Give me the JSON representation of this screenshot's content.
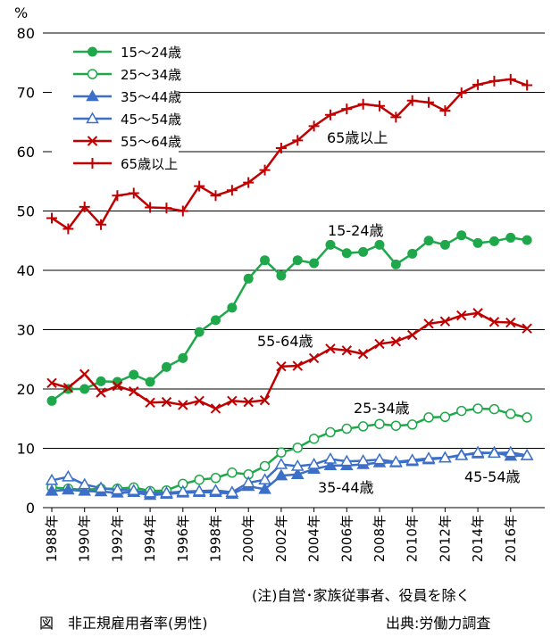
{
  "chart_data": {
    "type": "line",
    "unit_label": "%",
    "ylim": [
      0,
      80
    ],
    "yticks": [
      0,
      10,
      20,
      30,
      40,
      50,
      60,
      70,
      80
    ],
    "grid": true,
    "legend_position": "top-left",
    "x": [
      1988,
      1989,
      1990,
      1991,
      1992,
      1993,
      1994,
      1995,
      1996,
      1997,
      1998,
      1999,
      2000,
      2001,
      2002,
      2003,
      2004,
      2005,
      2006,
      2007,
      2008,
      2009,
      2010,
      2011,
      2012,
      2013,
      2014,
      2015,
      2016,
      2017
    ],
    "xtick_labels": [
      "1988年",
      "1990年",
      "1992年",
      "1994年",
      "1996年",
      "1998年",
      "2000年",
      "2002年",
      "2004年",
      "2006年",
      "2008年",
      "2010年",
      "2012年",
      "2014年",
      "2016年"
    ],
    "series": [
      {
        "name": "15～24歳",
        "color": "#1fa84b",
        "marker": "circle-filled",
        "values": [
          18.0,
          20.0,
          20.0,
          21.3,
          21.2,
          22.4,
          21.2,
          23.7,
          25.2,
          29.6,
          31.6,
          33.7,
          38.6,
          41.7,
          39.1,
          41.7,
          41.2,
          44.3,
          42.9,
          43.1,
          44.3,
          41.0,
          42.8,
          45.0,
          44.3,
          45.9,
          44.6,
          44.9,
          45.5,
          45.1
        ]
      },
      {
        "name": "25～34歳",
        "color": "#1fa84b",
        "marker": "circle-open",
        "values": [
          3.4,
          3.2,
          3.0,
          3.2,
          3.2,
          3.4,
          2.8,
          2.9,
          4.0,
          4.7,
          5.0,
          5.9,
          5.6,
          7.0,
          9.3,
          10.1,
          11.6,
          12.7,
          13.3,
          13.7,
          14.1,
          13.8,
          14.0,
          15.2,
          15.3,
          16.3,
          16.7,
          16.6,
          15.8,
          15.2
        ]
      },
      {
        "name": "35～44歳",
        "color": "#3b6fc8",
        "marker": "triangle-filled",
        "values": [
          2.8,
          3.0,
          2.8,
          2.7,
          2.5,
          2.6,
          2.1,
          2.3,
          2.5,
          2.6,
          2.6,
          2.3,
          3.6,
          3.1,
          5.4,
          5.6,
          6.5,
          7.1,
          7.1,
          7.3,
          7.6,
          7.6,
          7.8,
          8.1,
          8.4,
          8.9,
          9.1,
          9.3,
          8.7,
          8.8
        ]
      },
      {
        "name": "45～54歳",
        "color": "#3b6fc8",
        "marker": "triangle-open",
        "values": [
          4.6,
          5.2,
          3.9,
          3.3,
          3.0,
          2.9,
          2.5,
          2.5,
          2.7,
          2.8,
          2.9,
          2.6,
          4.2,
          4.7,
          7.3,
          7.0,
          7.3,
          8.2,
          7.8,
          7.9,
          8.1,
          7.7,
          8.0,
          8.3,
          8.4,
          8.8,
          9.3,
          9.2,
          9.3,
          8.8
        ]
      },
      {
        "name": "55～64歳",
        "color": "#c00000",
        "marker": "x",
        "values": [
          21.0,
          20.2,
          22.5,
          19.4,
          20.5,
          19.6,
          17.7,
          17.8,
          17.3,
          18.0,
          16.7,
          18.0,
          17.8,
          18.1,
          23.8,
          23.9,
          25.2,
          26.8,
          26.5,
          25.9,
          27.6,
          28.0,
          29.1,
          31.0,
          31.4,
          32.4,
          32.8,
          31.3,
          31.2,
          30.2
        ]
      },
      {
        "name": "65歳以上",
        "color": "#c00000",
        "marker": "plus",
        "values": [
          48.8,
          47.0,
          50.7,
          47.7,
          52.6,
          53.0,
          50.6,
          50.5,
          50.0,
          54.2,
          52.6,
          53.5,
          54.8,
          56.9,
          60.6,
          61.9,
          64.3,
          66.2,
          67.2,
          68.0,
          67.7,
          65.8,
          68.6,
          68.3,
          66.9,
          69.9,
          71.3,
          71.9,
          72.2,
          71.2
        ]
      }
    ],
    "annotations": [
      {
        "text": "65歳以上",
        "series": "65歳以上"
      },
      {
        "text": "15-24歳",
        "series": "15～24歳"
      },
      {
        "text": "55-64歳",
        "series": "55～64歳"
      },
      {
        "text": "25-34歳",
        "series": "25～34歳"
      },
      {
        "text": "35-44歳",
        "series": "35～44歳"
      },
      {
        "text": "45-54歳",
        "series": "45～54歳"
      }
    ]
  },
  "footer": {
    "note": "(注)自営･家族従事者、役員を除く",
    "title": "図　非正規雇用者率(男性)",
    "source": "出典:労働力調査"
  }
}
